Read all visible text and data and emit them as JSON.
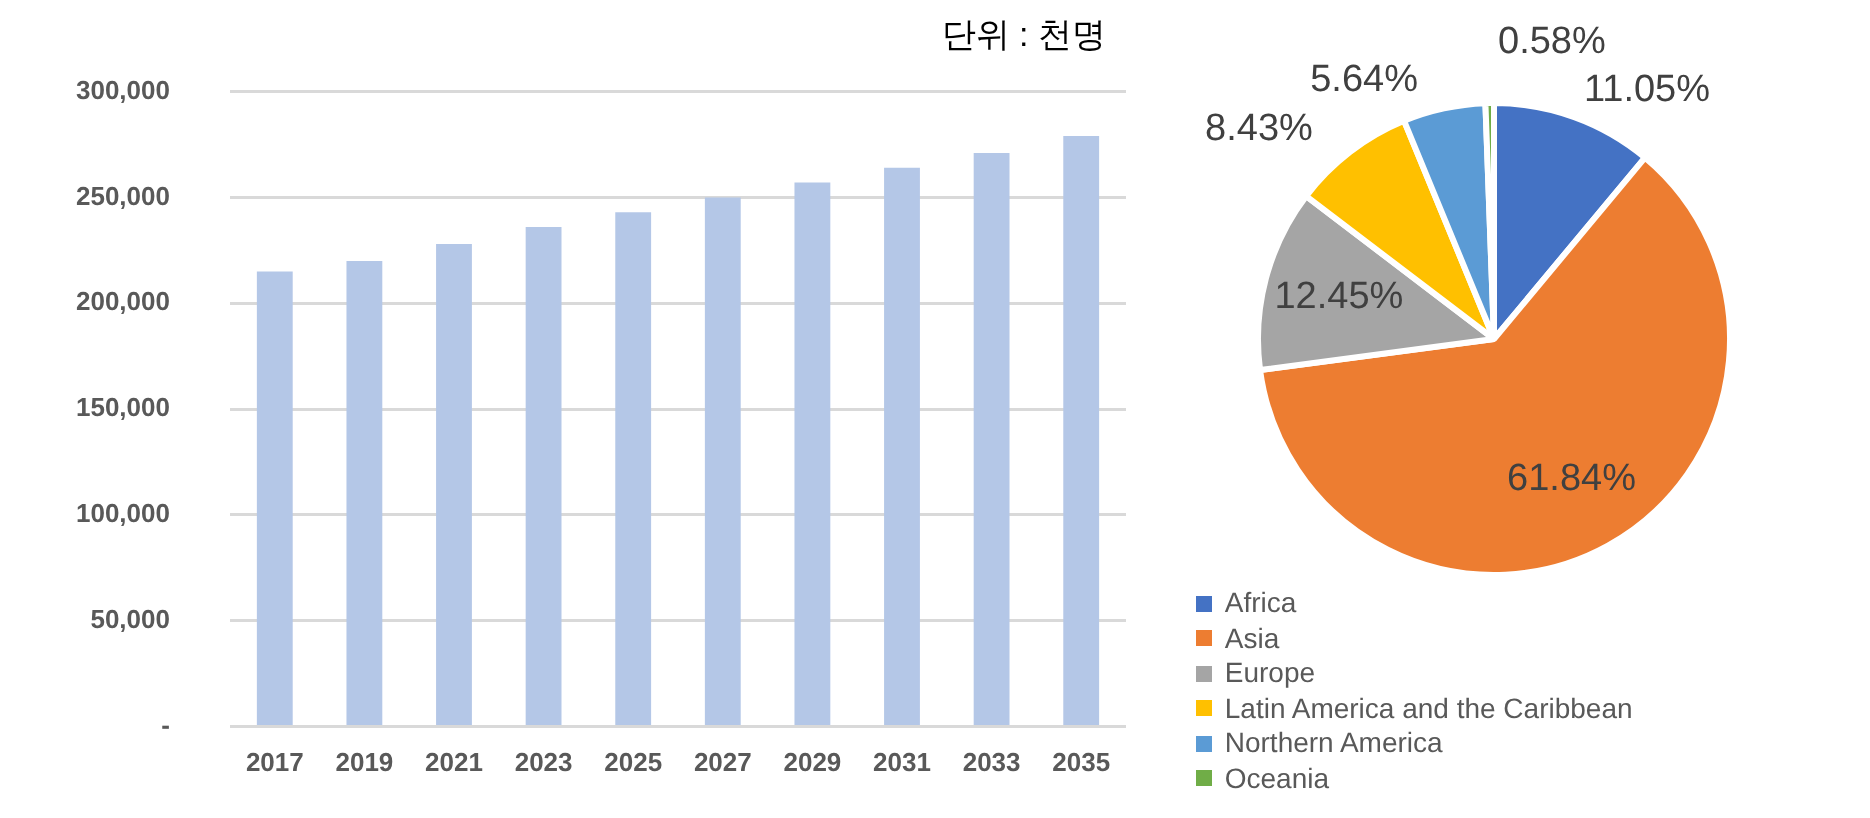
{
  "chart_data": [
    {
      "type": "bar",
      "categories": [
        "2017",
        "2019",
        "2021",
        "2023",
        "2025",
        "2027",
        "2029",
        "2031",
        "2033",
        "2035"
      ],
      "values": [
        215000,
        220000,
        228000,
        236000,
        243000,
        250000,
        257000,
        264000,
        271000,
        279000
      ],
      "color": "#b4c7e7",
      "ylim": [
        0,
        300000
      ],
      "yticks": [
        {
          "value": 0,
          "label": "-"
        },
        {
          "value": 50000,
          "label": "50,000"
        },
        {
          "value": 100000,
          "label": "100,000"
        },
        {
          "value": 150000,
          "label": "150,000"
        },
        {
          "value": 200000,
          "label": "200,000"
        },
        {
          "value": 250000,
          "label": "250,000"
        },
        {
          "value": 300000,
          "label": "300,000"
        }
      ],
      "grid": "y",
      "annotations": [
        "단위 : 천명"
      ]
    },
    {
      "type": "pie",
      "categories": [
        "Africa",
        "Asia",
        "Europe",
        "Latin America and the Caribbean",
        "Northern America",
        "Oceania"
      ],
      "values": [
        11.05,
        61.84,
        12.45,
        8.43,
        5.64,
        0.58
      ],
      "colors": [
        "#4472c4",
        "#ed7d31",
        "#a5a5a5",
        "#ffc000",
        "#5b9bd5",
        "#70ad47"
      ],
      "value_labels": [
        "11.05%",
        "61.84%",
        "12.45%",
        "8.43%",
        "5.64%",
        "0.58%"
      ],
      "legend": "bottom"
    }
  ]
}
